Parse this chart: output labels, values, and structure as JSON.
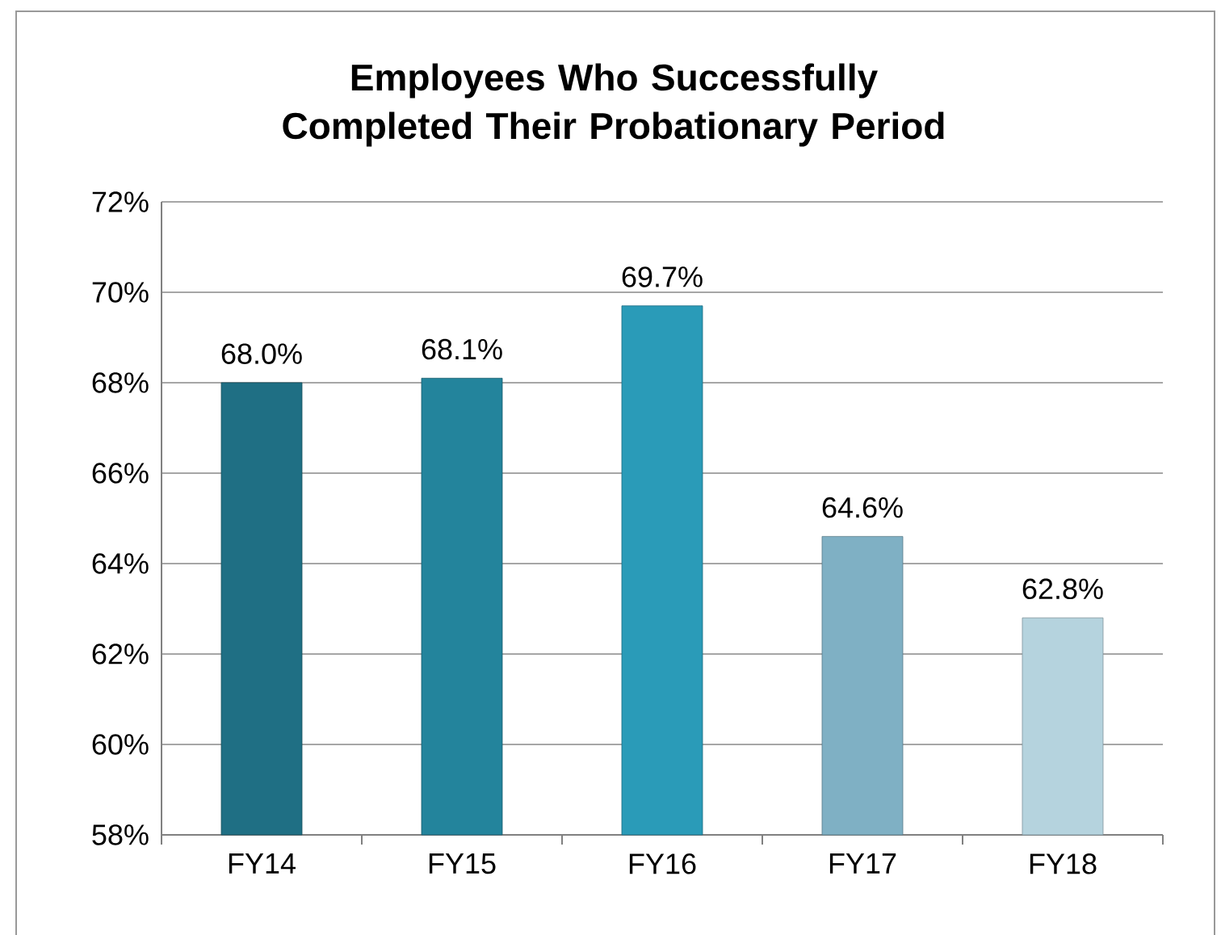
{
  "chart_data": {
    "type": "bar",
    "title": "Employees Who Successfully Completed Their Probationary Period",
    "categories": [
      "FY14",
      "FY15",
      "FY16",
      "FY17",
      "FY18"
    ],
    "values": [
      68.0,
      68.1,
      69.7,
      64.6,
      62.8
    ],
    "colors": [
      "#1f6f84",
      "#23849c",
      "#2a9bb8",
      "#7fb0c4",
      "#b5d3de"
    ],
    "value_labels": [
      "68.0%",
      "68.1%",
      "69.7%",
      "64.6%",
      "62.8%"
    ],
    "ylim": [
      58,
      72
    ],
    "yticks": [
      {
        "value": 58,
        "label": "58%"
      },
      {
        "value": 60,
        "label": "60%"
      },
      {
        "value": 62,
        "label": "62%"
      },
      {
        "value": 64,
        "label": "64%"
      },
      {
        "value": 66,
        "label": "66%"
      },
      {
        "value": 68,
        "label": "68%"
      },
      {
        "value": 70,
        "label": "70%"
      },
      {
        "value": 72,
        "label": "72%"
      }
    ],
    "grid": "y"
  }
}
